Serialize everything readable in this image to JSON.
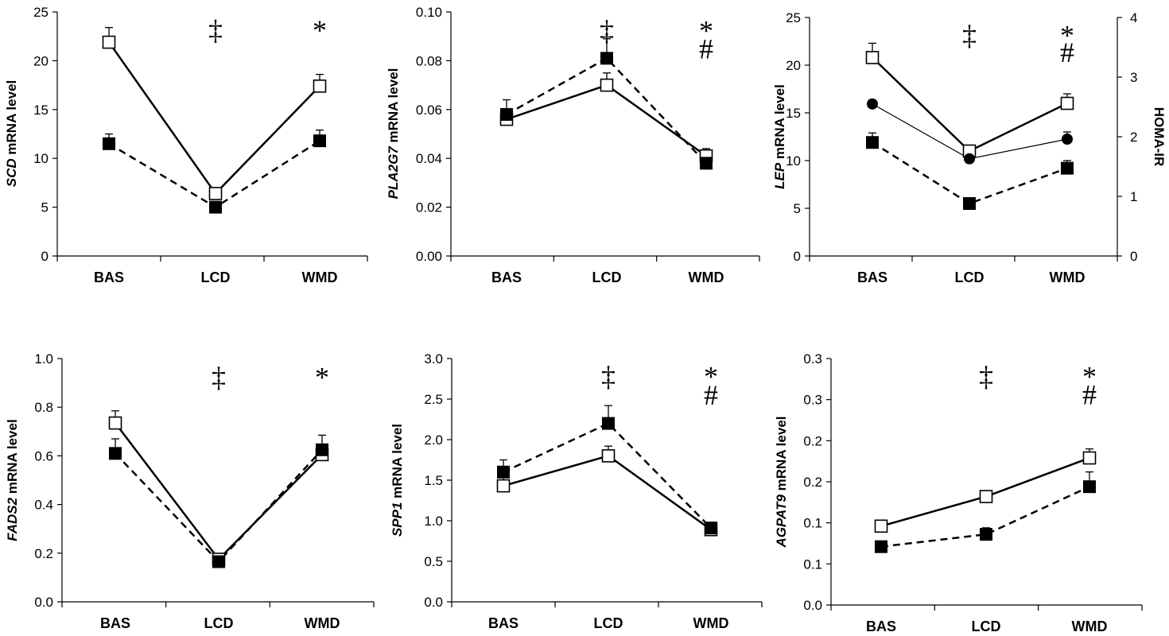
{
  "chart_data": [
    {
      "type": "line",
      "ylabel_gene": "SCD",
      "ylabel_rest": " mRNA level",
      "categories": [
        "BAS",
        "LCD",
        "WMD"
      ],
      "yticks": [
        "0",
        "5",
        "10",
        "15",
        "20",
        "25"
      ],
      "ylim": [
        0,
        25
      ],
      "series": [
        {
          "marker": "open-square",
          "line": "solid",
          "values": [
            21.9,
            6.4,
            17.4
          ],
          "errors": [
            1.5,
            0.4,
            1.2
          ]
        },
        {
          "marker": "filled-square",
          "line": "dashed",
          "values": [
            11.5,
            5.0,
            11.8
          ],
          "errors": [
            1.0,
            0.3,
            1.1
          ]
        }
      ],
      "annotations": [
        {
          "category": "LCD",
          "text": "‡",
          "y": 23.3
        },
        {
          "category": "WMD",
          "text": "*",
          "y": 23.3
        }
      ]
    },
    {
      "type": "line",
      "ylabel_gene": "PLA2G7",
      "ylabel_rest": " mRNA level",
      "categories": [
        "BAS",
        "LCD",
        "WMD"
      ],
      "yticks": [
        "0.00",
        "0.02",
        "0.04",
        "0.06",
        "0.08",
        "0.10"
      ],
      "ylim": [
        0,
        0.1
      ],
      "series": [
        {
          "marker": "open-square",
          "line": "solid",
          "values": [
            0.056,
            0.07,
            0.041
          ],
          "errors": [
            0.004,
            0.005,
            0.003
          ]
        },
        {
          "marker": "filled-square",
          "line": "dashed",
          "values": [
            0.058,
            0.081,
            0.038
          ],
          "errors": [
            0.006,
            0.008,
            0.003
          ]
        }
      ],
      "annotations": [
        {
          "category": "LCD",
          "text": "‡",
          "y": 0.093
        },
        {
          "category": "WMD",
          "text": "*",
          "y": 0.093
        },
        {
          "category": "WMD",
          "text": "#",
          "y": 0.0855
        }
      ]
    },
    {
      "type": "line",
      "ylabel_gene": "LEP",
      "ylabel_rest": " mRNA level",
      "y2label": "HOMA-IR",
      "categories": [
        "BAS",
        "LCD",
        "WMD"
      ],
      "yticks": [
        "0",
        "5",
        "10",
        "15",
        "20",
        "25"
      ],
      "ylim": [
        0,
        25
      ],
      "y2ticks": [
        "0",
        "1",
        "2",
        "3",
        "4"
      ],
      "y2lim": [
        0,
        4
      ],
      "series": [
        {
          "marker": "open-square",
          "line": "solid",
          "values": [
            20.8,
            11.0,
            16.0
          ],
          "errors": [
            1.5,
            0.6,
            1.0
          ]
        },
        {
          "marker": "filled-square",
          "line": "dashed",
          "values": [
            11.9,
            5.5,
            9.2
          ],
          "errors": [
            1.0,
            0.3,
            0.8
          ]
        },
        {
          "marker": "filled-circle",
          "line": "thin",
          "axis": "y2",
          "values": [
            2.55,
            1.63,
            1.96
          ],
          "errors": [
            0.06,
            0.04,
            0.12
          ]
        }
      ],
      "annotations": [
        {
          "category": "LCD",
          "text": "‡",
          "y": 23.3
        },
        {
          "category": "WMD",
          "text": "*",
          "y": 23.3
        },
        {
          "category": "WMD",
          "text": "#",
          "y": 21.5
        }
      ]
    },
    {
      "type": "line",
      "ylabel_gene": "FADS2",
      "ylabel_rest": " mRNA level",
      "categories": [
        "BAS",
        "LCD",
        "WMD"
      ],
      "yticks": [
        "0.0",
        "0.2",
        "0.4",
        "0.6",
        "0.8",
        "1.0"
      ],
      "ylim": [
        0,
        1.0
      ],
      "series": [
        {
          "marker": "open-square",
          "line": "solid",
          "values": [
            0.735,
            0.175,
            0.605
          ],
          "errors": [
            0.05,
            0.01,
            0.04
          ]
        },
        {
          "marker": "filled-square",
          "line": "dashed",
          "values": [
            0.61,
            0.165,
            0.625
          ],
          "errors": [
            0.06,
            0.01,
            0.06
          ]
        }
      ],
      "annotations": [
        {
          "category": "LCD",
          "text": "‡",
          "y": 0.93
        },
        {
          "category": "WMD",
          "text": "*",
          "y": 0.93
        }
      ]
    },
    {
      "type": "line",
      "ylabel_gene": "SPP1",
      "ylabel_rest": " mRNA level",
      "categories": [
        "BAS",
        "LCD",
        "WMD"
      ],
      "yticks": [
        "0.0",
        "0.5",
        "1.0",
        "1.5",
        "2.0",
        "2.5",
        "3.0"
      ],
      "ylim": [
        0,
        3.0
      ],
      "series": [
        {
          "marker": "open-square",
          "line": "solid",
          "values": [
            1.43,
            1.8,
            0.89
          ],
          "errors": [
            0.1,
            0.12,
            0.06
          ]
        },
        {
          "marker": "filled-square",
          "line": "dashed",
          "values": [
            1.6,
            2.2,
            0.91
          ],
          "errors": [
            0.15,
            0.22,
            0.05
          ]
        }
      ],
      "annotations": [
        {
          "category": "LCD",
          "text": "‡",
          "y": 2.8
        },
        {
          "category": "WMD",
          "text": "*",
          "y": 2.8
        },
        {
          "category": "WMD",
          "text": "#",
          "y": 2.57
        }
      ]
    },
    {
      "type": "line",
      "ylabel_gene": "AGPAT9",
      "ylabel_rest": " mRNA level",
      "categories": [
        "BAS",
        "LCD",
        "WMD"
      ],
      "yticks": [
        "0.0",
        "0.1",
        "0.1",
        "0.2",
        "0.2",
        "0.3",
        "0.3"
      ],
      "ylim": [
        0,
        0.3
      ],
      "series": [
        {
          "marker": "open-square",
          "line": "solid",
          "values": [
            0.096,
            0.132,
            0.179
          ],
          "errors": [
            0.005,
            0.006,
            0.011
          ]
        },
        {
          "marker": "filled-square",
          "line": "dashed",
          "values": [
            0.071,
            0.086,
            0.144
          ],
          "errors": [
            0.006,
            0.008,
            0.018
          ]
        }
      ],
      "annotations": [
        {
          "category": "LCD",
          "text": "‡",
          "y": 0.28
        },
        {
          "category": "WMD",
          "text": "*",
          "y": 0.28
        },
        {
          "category": "WMD",
          "text": "#",
          "y": 0.258
        }
      ]
    }
  ]
}
